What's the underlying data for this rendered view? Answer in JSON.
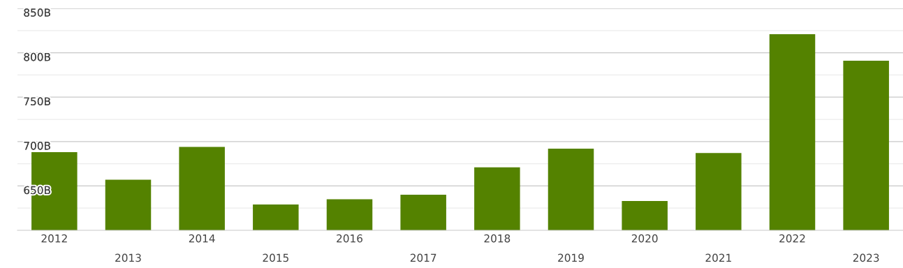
{
  "chart_data": {
    "type": "bar",
    "categories": [
      "2012",
      "2013",
      "2014",
      "2015",
      "2016",
      "2017",
      "2018",
      "2019",
      "2020",
      "2021",
      "2022",
      "2023"
    ],
    "values": [
      688,
      657,
      694,
      629,
      635,
      640,
      671,
      692,
      633,
      687,
      821,
      791
    ],
    "color": "#548200",
    "ylim": [
      600,
      850
    ],
    "yticks": [
      {
        "value": 625,
        "label": null
      },
      {
        "value": 650,
        "label": "650B"
      },
      {
        "value": 675,
        "label": null
      },
      {
        "value": 700,
        "label": "700B"
      },
      {
        "value": 725,
        "label": null
      },
      {
        "value": 750,
        "label": "750B"
      },
      {
        "value": 775,
        "label": null
      },
      {
        "value": 800,
        "label": "800B"
      },
      {
        "value": 825,
        "label": null
      },
      {
        "value": 850,
        "label": "850B"
      }
    ],
    "grid": "y"
  }
}
